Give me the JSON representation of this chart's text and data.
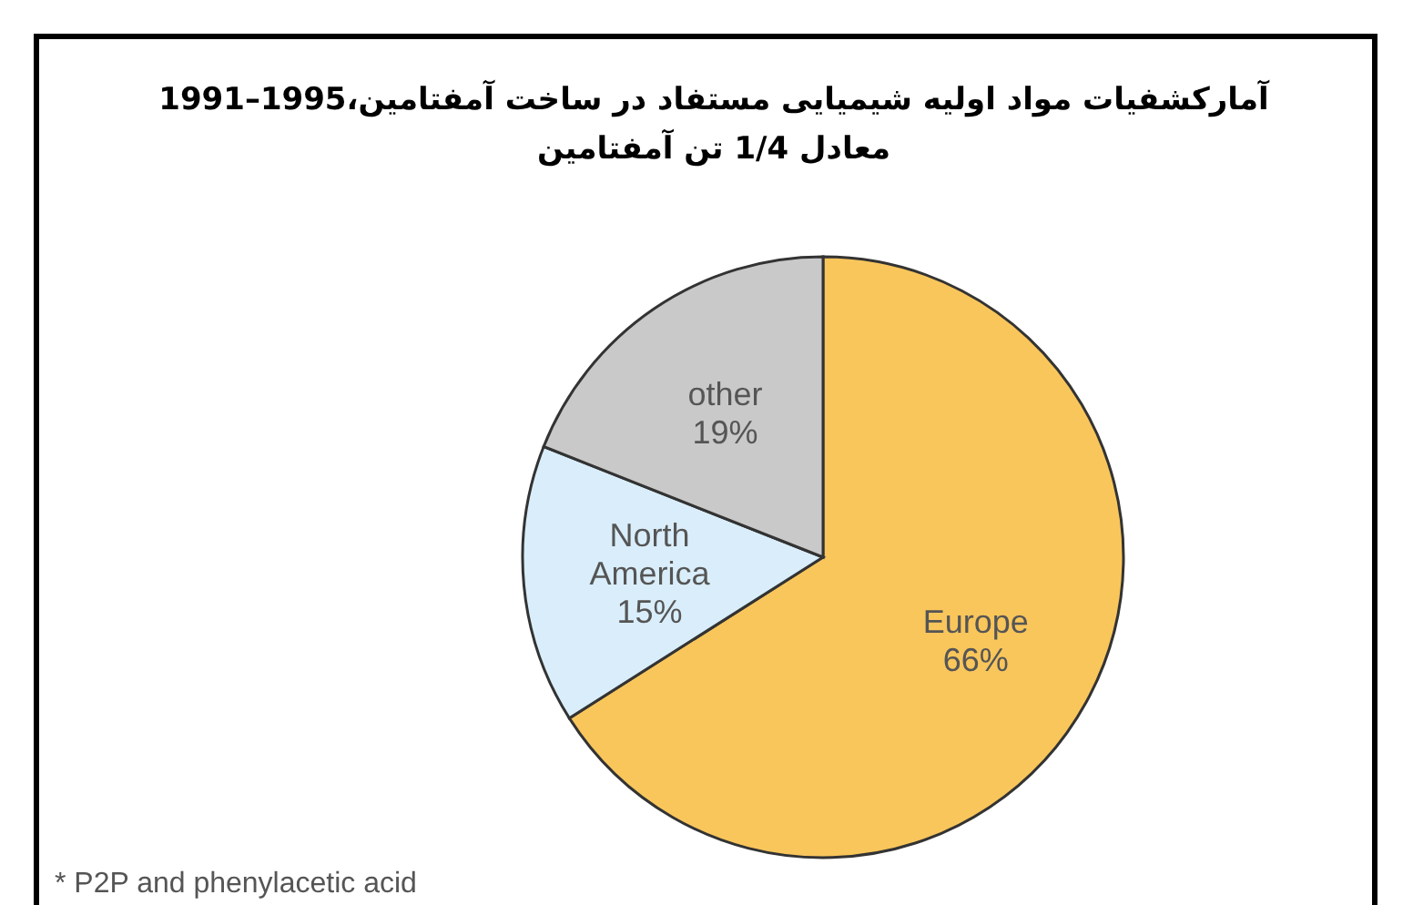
{
  "chart_data": {
    "type": "pie",
    "title": "آمارکشفیات مواد اولیه شیمیایی مستفاد در ساخت آمفتامین،1995–1991",
    "subtitle": "معادل 1/4 تن آمفتامین",
    "categories": [
      "Europe",
      "North America",
      "other"
    ],
    "values": [
      66,
      15,
      19
    ],
    "colors": [
      "#f9c65c",
      "#d9eefa",
      "#c9c9c9"
    ],
    "value_labels": [
      "66%",
      "15%",
      "19%"
    ],
    "annotations": [
      "* P2P and phenylacetic acid"
    ]
  }
}
